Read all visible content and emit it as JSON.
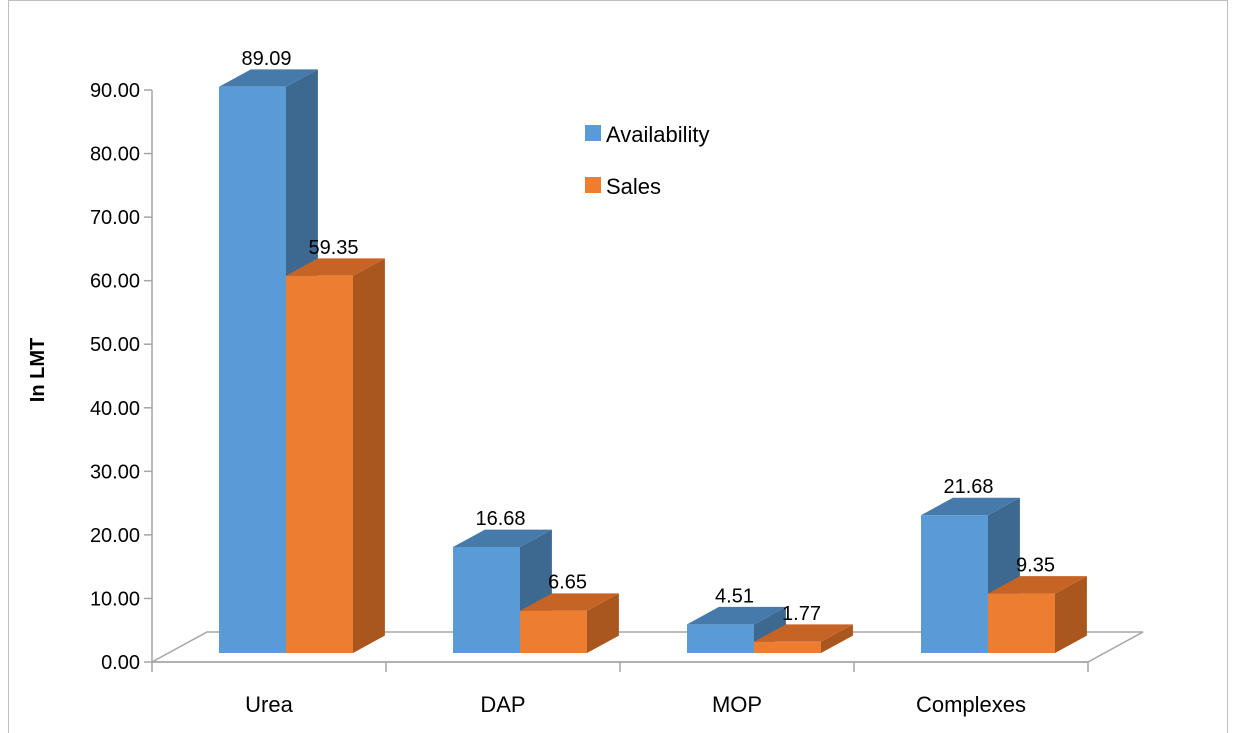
{
  "chart_data": {
    "type": "bar",
    "title": "",
    "xlabel": "",
    "ylabel": "In LMT",
    "categories": [
      "Urea",
      "DAP",
      "MOP",
      "Complexes"
    ],
    "series": [
      {
        "name": "Availability",
        "values": [
          89.09,
          16.68,
          4.51,
          21.68
        ],
        "value_labels": [
          "89.09",
          "16.68",
          "4.51",
          "21.68"
        ]
      },
      {
        "name": "Sales",
        "values": [
          59.35,
          6.65,
          1.77,
          9.35
        ],
        "value_labels": [
          "59.35",
          "6.65",
          "1.77",
          "9.35"
        ]
      }
    ],
    "ylim": [
      0,
      90
    ],
    "yticks": [
      "0.00",
      "10.00",
      "20.00",
      "30.00",
      "40.00",
      "50.00",
      "60.00",
      "70.00",
      "80.00",
      "90.00"
    ],
    "grid": false,
    "legend_position": "top-center",
    "style": "3d-clustered-column"
  },
  "colors": {
    "Availability": {
      "front": "#5b9bd5",
      "side": "#3d6990",
      "top": "#467aab"
    },
    "Sales": {
      "front": "#ed7d31",
      "side": "#a9561f",
      "top": "#c56424"
    },
    "axis": "#a6a6a6"
  }
}
